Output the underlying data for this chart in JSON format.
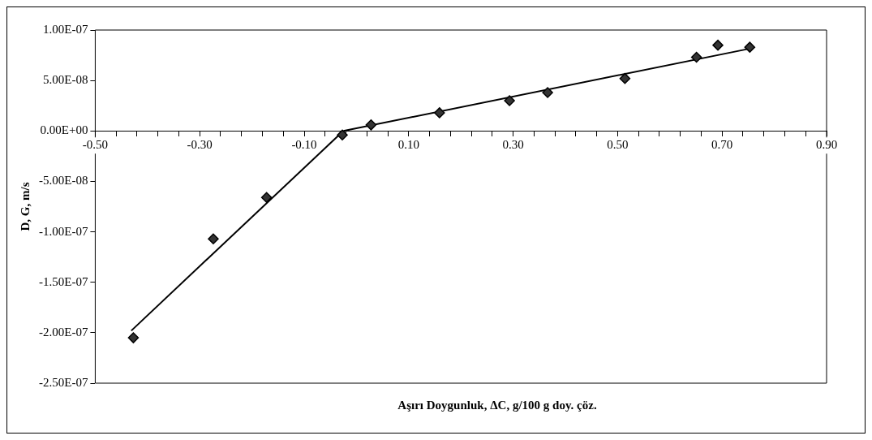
{
  "chart_data": {
    "type": "scatter",
    "xlabel": "Aşırı Doygunluk, ΔC, g/100 g doy. çöz.",
    "ylabel": "D, G, m/s",
    "xlim": [
      -0.5,
      0.9
    ],
    "ylim": [
      -2.5e-07,
      1e-07
    ],
    "xticks": [
      {
        "value": -0.5,
        "label": "-0.50"
      },
      {
        "value": -0.46,
        "label": null
      },
      {
        "value": -0.42,
        "label": null
      },
      {
        "value": -0.38,
        "label": null
      },
      {
        "value": -0.34,
        "label": null
      },
      {
        "value": -0.3,
        "label": "-0.30"
      },
      {
        "value": -0.26,
        "label": null
      },
      {
        "value": -0.22,
        "label": null
      },
      {
        "value": -0.18,
        "label": null
      },
      {
        "value": -0.14,
        "label": null
      },
      {
        "value": -0.1,
        "label": "-0.10"
      },
      {
        "value": -0.06,
        "label": null
      },
      {
        "value": -0.02,
        "label": null
      },
      {
        "value": 0.02,
        "label": null
      },
      {
        "value": 0.06,
        "label": null
      },
      {
        "value": 0.1,
        "label": "0.10"
      },
      {
        "value": 0.14,
        "label": null
      },
      {
        "value": 0.18,
        "label": null
      },
      {
        "value": 0.22,
        "label": null
      },
      {
        "value": 0.26,
        "label": null
      },
      {
        "value": 0.3,
        "label": "0.30"
      },
      {
        "value": 0.34,
        "label": null
      },
      {
        "value": 0.38,
        "label": null
      },
      {
        "value": 0.42,
        "label": null
      },
      {
        "value": 0.46,
        "label": null
      },
      {
        "value": 0.5,
        "label": "0.50"
      },
      {
        "value": 0.54,
        "label": null
      },
      {
        "value": 0.58,
        "label": null
      },
      {
        "value": 0.62,
        "label": null
      },
      {
        "value": 0.66,
        "label": null
      },
      {
        "value": 0.7,
        "label": "0.70"
      },
      {
        "value": 0.74,
        "label": null
      },
      {
        "value": 0.78,
        "label": null
      },
      {
        "value": 0.82,
        "label": null
      },
      {
        "value": 0.86,
        "label": null
      },
      {
        "value": 0.9,
        "label": "0.90"
      }
    ],
    "yticks": [
      {
        "value": 1e-07,
        "label": "1.00E-07"
      },
      {
        "value": 5e-08,
        "label": "5.00E-08"
      },
      {
        "value": 0,
        "label": "0.00E+00"
      },
      {
        "value": -5e-08,
        "label": "-5.00E-08"
      },
      {
        "value": -1e-07,
        "label": "-1.00E-07"
      },
      {
        "value": -1.5e-07,
        "label": "-1.50E-07"
      },
      {
        "value": -2e-07,
        "label": "-2.00E-07"
      },
      {
        "value": -2.5e-07,
        "label": "-2.50E-07"
      }
    ],
    "series": [
      {
        "color": "#333333",
        "marker": "diamond",
        "x": [
          -0.427,
          -0.274,
          -0.172,
          -0.027,
          0.028,
          0.159,
          0.293,
          0.366,
          0.514,
          0.651,
          0.692,
          0.753
        ],
        "values": [
          -2.05e-07,
          -1.07e-07,
          -6.6e-08,
          -4e-09,
          6e-09,
          1.8e-08,
          3e-08,
          3.8e-08,
          5.2e-08,
          7.3e-08,
          8.5e-08,
          8.3e-08
        ]
      },
      {
        "type": "line",
        "color": "#000000",
        "marker": "none",
        "x": [
          -0.431,
          -0.025
        ],
        "values": [
          -1.98e-07,
          0
        ]
      },
      {
        "type": "line",
        "color": "#000000",
        "marker": "none",
        "x": [
          -0.025,
          0.757
        ],
        "values": [
          0,
          8.2e-08
        ]
      }
    ]
  }
}
